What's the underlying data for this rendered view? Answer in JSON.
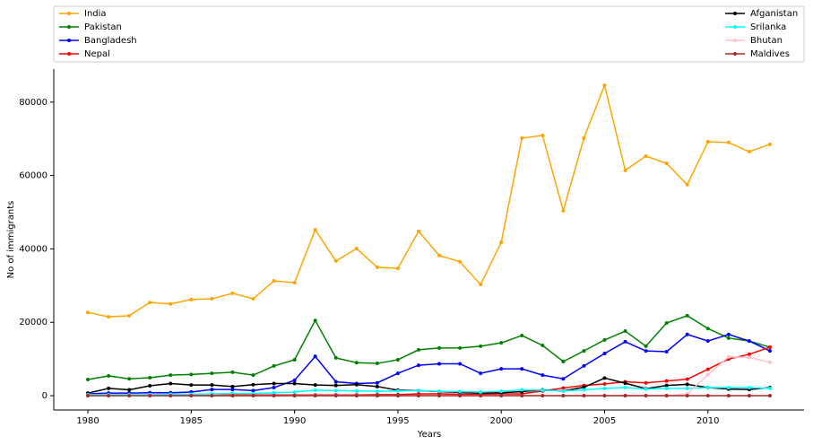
{
  "chart_data": {
    "type": "line",
    "xlabel": "Years",
    "ylabel": "No of immigrants",
    "x": [
      1980,
      1981,
      1982,
      1983,
      1984,
      1985,
      1986,
      1987,
      1988,
      1989,
      1990,
      1991,
      1992,
      1993,
      1994,
      1995,
      1996,
      1997,
      1998,
      1999,
      2000,
      2001,
      2002,
      2003,
      2004,
      2005,
      2006,
      2007,
      2008,
      2009,
      2010,
      2011,
      2012,
      2013
    ],
    "xlim": [
      1978.35,
      2014.65
    ],
    "xticks": [
      1980,
      1985,
      1990,
      1995,
      2000,
      2005,
      2010
    ],
    "ylim": [
      -3900,
      89000
    ],
    "yticks": [
      0,
      20000,
      40000,
      60000,
      80000
    ],
    "legend": "top",
    "legend_columns": 2,
    "series": [
      {
        "name": "India",
        "color": "orange",
        "values": [
          22700,
          21500,
          21800,
          25400,
          25000,
          26200,
          26400,
          27900,
          26400,
          31300,
          30800,
          45200,
          36700,
          40100,
          35000,
          34700,
          44800,
          38200,
          36500,
          30300,
          41800,
          70200,
          70900,
          50400,
          70200,
          84600,
          61400,
          65300,
          63300,
          57500,
          69200,
          69000,
          66500,
          68500
        ]
      },
      {
        "name": "Pakistan",
        "color": "green",
        "values": [
          4400,
          5400,
          4600,
          4900,
          5600,
          5800,
          6100,
          6400,
          5600,
          8100,
          9800,
          20500,
          10300,
          9000,
          8800,
          9800,
          12500,
          13000,
          13000,
          13500,
          14400,
          16400,
          13700,
          9300,
          12200,
          15200,
          17600,
          13500,
          19800,
          21800,
          18300,
          15700,
          14900,
          13200
        ]
      },
      {
        "name": "Bangladesh",
        "color": "blue",
        "values": [
          500,
          700,
          700,
          800,
          800,
          1000,
          1700,
          1700,
          1400,
          2200,
          4200,
          10700,
          3800,
          3300,
          3500,
          6100,
          8300,
          8700,
          8700,
          6100,
          7300,
          7300,
          5600,
          4600,
          8100,
          11500,
          14700,
          12200,
          12000,
          16700,
          14900,
          16700,
          14900,
          12200
        ]
      },
      {
        "name": "Nepal",
        "color": "red",
        "values": [
          100,
          100,
          100,
          100,
          100,
          100,
          100,
          200,
          200,
          200,
          200,
          200,
          200,
          200,
          300,
          300,
          500,
          500,
          400,
          400,
          500,
          500,
          1300,
          2100,
          2800,
          3200,
          3800,
          3500,
          4000,
          4500,
          7200,
          10000,
          11300,
          13200
        ]
      },
      {
        "name": "Afganistan",
        "color": "black",
        "values": [
          700,
          2000,
          1600,
          2700,
          3300,
          2900,
          2900,
          2500,
          3000,
          3300,
          3300,
          2900,
          2800,
          3000,
          2500,
          1500,
          1400,
          1100,
          900,
          700,
          800,
          1100,
          1600,
          1300,
          2300,
          4800,
          3400,
          1900,
          2800,
          3100,
          2200,
          1800,
          1700,
          2200
        ]
      },
      {
        "name": "Srilanka",
        "color": "cyan",
        "values": [
          300,
          300,
          300,
          300,
          400,
          400,
          500,
          600,
          600,
          800,
          1000,
          1500,
          1400,
          1300,
          1200,
          1300,
          1400,
          1200,
          1100,
          1000,
          1200,
          1600,
          1500,
          1300,
          1600,
          2000,
          2200,
          1800,
          2000,
          2000,
          2200,
          2200,
          2200,
          2000
        ]
      },
      {
        "name": "Bhutan",
        "color": "pink",
        "values": [
          0,
          0,
          0,
          0,
          0,
          0,
          0,
          0,
          0,
          0,
          0,
          0,
          0,
          0,
          0,
          0,
          0,
          0,
          0,
          0,
          0,
          0,
          0,
          0,
          0,
          0,
          0,
          0,
          0,
          500,
          5700,
          10600,
          10400,
          9100
        ]
      },
      {
        "name": "Maldives",
        "color": "brown",
        "values": [
          0,
          0,
          0,
          0,
          0,
          0,
          0,
          0,
          0,
          0,
          0,
          0,
          0,
          0,
          0,
          0,
          0,
          0,
          0,
          0,
          0,
          0,
          0,
          0,
          0,
          0,
          0,
          0,
          0,
          0,
          0,
          0,
          0,
          0
        ]
      }
    ]
  }
}
